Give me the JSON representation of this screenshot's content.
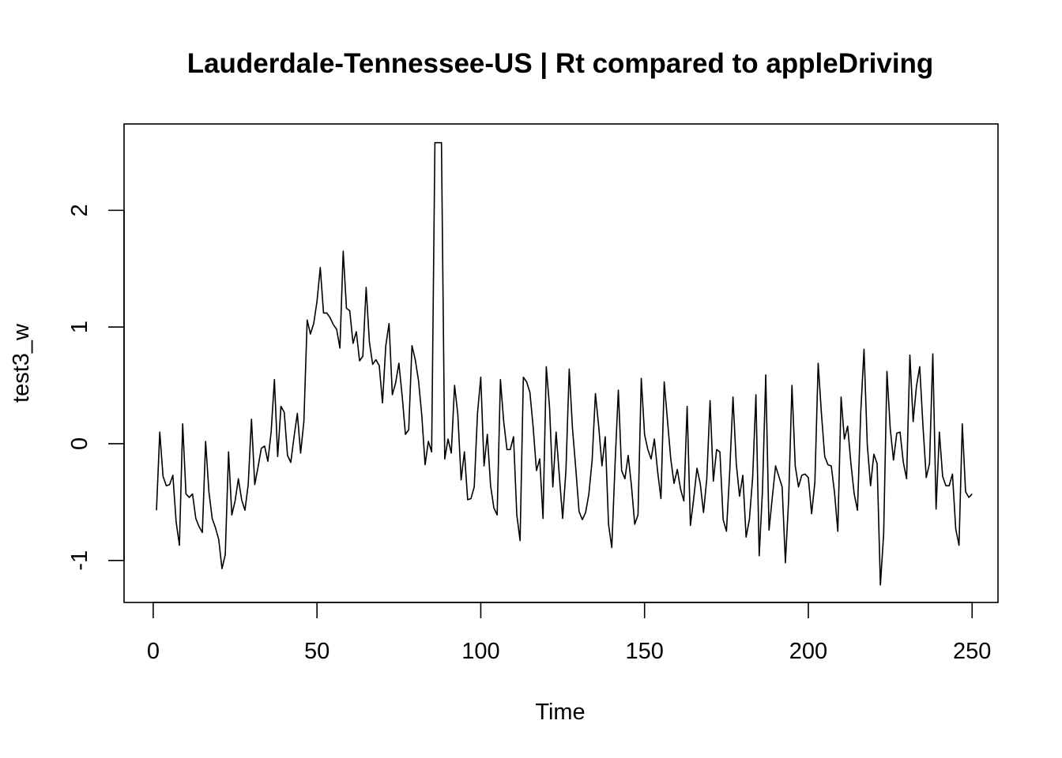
{
  "chart_data": {
    "type": "line",
    "title": "Lauderdale-Tennessee-US | Rt compared to appleDriving",
    "xlabel": "Time",
    "ylabel": "test3_w",
    "xlim": [
      -8.9,
      257.9
    ],
    "ylim": [
      -1.36,
      2.74
    ],
    "x_ticks": [
      0,
      50,
      100,
      150,
      200,
      250
    ],
    "y_ticks": [
      -1,
      0,
      1,
      2
    ],
    "x_tick_labels": [
      "0",
      "50",
      "100",
      "150",
      "200",
      "250"
    ],
    "y_tick_labels": [
      "-1",
      "0",
      "1",
      "2"
    ],
    "grid": false,
    "legend": "none",
    "line_color": "#000000",
    "series": [
      {
        "x_start": 1,
        "x_step": 1,
        "values": [
          -0.57,
          0.1,
          -0.28,
          -0.36,
          -0.35,
          -0.27,
          -0.67,
          -0.87,
          0.17,
          -0.43,
          -0.46,
          -0.43,
          -0.64,
          -0.71,
          -0.76,
          0.02,
          -0.41,
          -0.64,
          -0.72,
          -0.82,
          -1.07,
          -0.95,
          -0.07,
          -0.61,
          -0.49,
          -0.3,
          -0.48,
          -0.57,
          -0.35,
          0.21,
          -0.35,
          -0.2,
          -0.04,
          -0.02,
          -0.15,
          0.1,
          0.55,
          -0.11,
          0.32,
          0.27,
          -0.1,
          -0.16,
          0.06,
          0.26,
          -0.08,
          0.19,
          1.06,
          0.94,
          1.03,
          1.22,
          1.51,
          1.12,
          1.12,
          1.08,
          1.02,
          0.98,
          0.82,
          1.65,
          1.16,
          1.14,
          0.86,
          0.96,
          0.71,
          0.75,
          1.34,
          0.87,
          0.68,
          0.72,
          0.67,
          0.35,
          0.84,
          1.03,
          0.42,
          0.52,
          0.69,
          0.41,
          0.08,
          0.12,
          0.84,
          0.72,
          0.54,
          0.24,
          -0.18,
          0.02,
          -0.07,
          2.58,
          2.58,
          2.58,
          -0.13,
          0.04,
          -0.08,
          0.5,
          0.25,
          -0.31,
          -0.07,
          -0.48,
          -0.47,
          -0.37,
          0.26,
          0.57,
          -0.19,
          0.08,
          -0.36,
          -0.55,
          -0.61,
          0.55,
          0.19,
          -0.05,
          -0.05,
          0.06,
          -0.61,
          -0.83,
          0.57,
          0.53,
          0.44,
          0.14,
          -0.23,
          -0.13,
          -0.64,
          0.66,
          0.31,
          -0.37,
          0.1,
          -0.28,
          -0.64,
          -0.23,
          0.64,
          0.13,
          -0.21,
          -0.58,
          -0.65,
          -0.59,
          -0.43,
          -0.14,
          0.43,
          0.15,
          -0.19,
          0.06,
          -0.69,
          -0.89,
          -0.17,
          0.46,
          -0.23,
          -0.3,
          -0.1,
          -0.36,
          -0.69,
          -0.61,
          0.56,
          0.08,
          -0.05,
          -0.13,
          0.04,
          -0.24,
          -0.47,
          0.53,
          0.2,
          -0.13,
          -0.34,
          -0.22,
          -0.39,
          -0.49,
          0.32,
          -0.7,
          -0.47,
          -0.21,
          -0.34,
          -0.59,
          -0.3,
          0.37,
          -0.32,
          -0.05,
          -0.07,
          -0.65,
          -0.75,
          -0.24,
          0.4,
          -0.17,
          -0.45,
          -0.27,
          -0.8,
          -0.65,
          -0.29,
          0.42,
          -0.96,
          -0.4,
          0.59,
          -0.74,
          -0.46,
          -0.19,
          -0.28,
          -0.37,
          -1.02,
          -0.47,
          0.5,
          -0.19,
          -0.37,
          -0.27,
          -0.26,
          -0.29,
          -0.6,
          -0.33,
          0.69,
          0.26,
          -0.11,
          -0.18,
          -0.19,
          -0.42,
          -0.75,
          0.4,
          0.04,
          0.15,
          -0.17,
          -0.43,
          -0.57,
          0.27,
          0.81,
          -0.01,
          -0.36,
          -0.09,
          -0.17,
          -1.21,
          -0.77,
          0.62,
          0.13,
          -0.14,
          0.09,
          0.1,
          -0.16,
          -0.3,
          0.76,
          0.19,
          0.49,
          0.66,
          0.15,
          -0.29,
          -0.17,
          0.77,
          -0.56,
          0.1,
          -0.28,
          -0.36,
          -0.36,
          -0.26,
          -0.73,
          -0.87,
          0.17,
          -0.41,
          -0.46,
          -0.43
        ]
      }
    ]
  }
}
